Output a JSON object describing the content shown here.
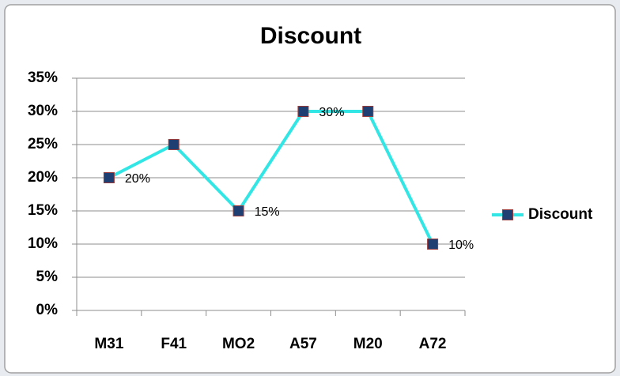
{
  "chart_data": {
    "type": "line",
    "title": "Discount",
    "categories": [
      "M31",
      "F41",
      "MO2",
      "A57",
      "M20",
      "A72"
    ],
    "series": [
      {
        "name": "Discount",
        "color": "#33e6e6",
        "marker_color": "#1f3f73",
        "values": [
          20,
          25,
          15,
          30,
          30,
          10
        ],
        "value_labels": [
          "20%",
          null,
          "15%",
          "30%",
          null,
          "10%"
        ]
      }
    ],
    "ylim": [
      0,
      35
    ],
    "yticks": [
      {
        "value": 0,
        "label": "0%"
      },
      {
        "value": 5,
        "label": "5%"
      },
      {
        "value": 10,
        "label": "10%"
      },
      {
        "value": 15,
        "label": "15%"
      },
      {
        "value": 20,
        "label": "20%"
      },
      {
        "value": 25,
        "label": "25%"
      },
      {
        "value": 30,
        "label": "30%"
      },
      {
        "value": 35,
        "label": "35%"
      }
    ],
    "grid": true,
    "legend": "right"
  }
}
